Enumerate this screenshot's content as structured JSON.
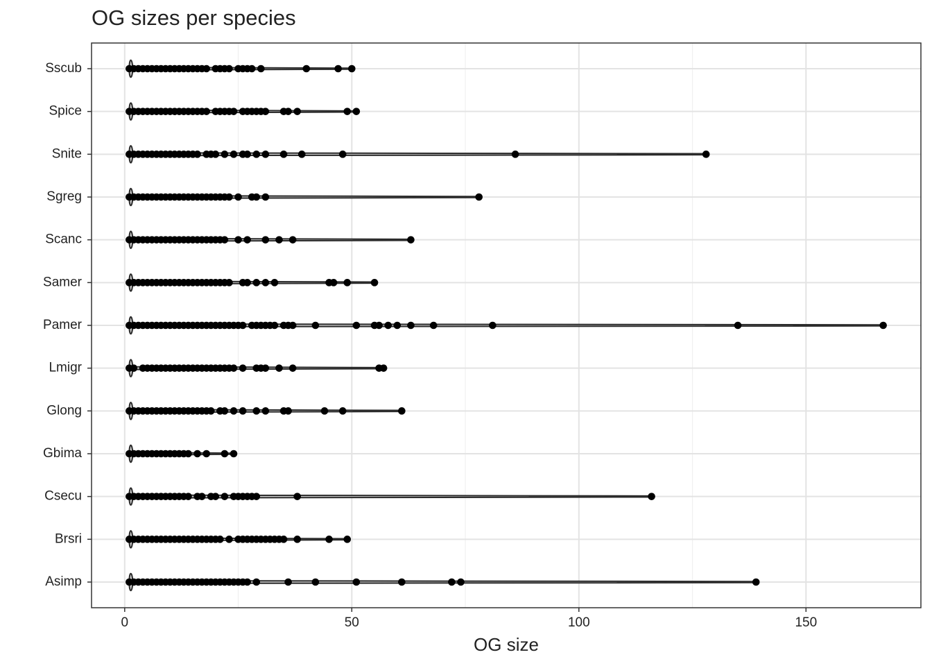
{
  "chart_data": {
    "type": "strip",
    "title": "OG sizes per species",
    "x_label": "OG size",
    "categories": [
      "Sscub",
      "Spice",
      "Snite",
      "Sgreg",
      "Scanc",
      "Samer",
      "Pamer",
      "Lmigr",
      "Glong",
      "Gbima",
      "Csecu",
      "Brsri",
      "Asimp"
    ],
    "values": [
      [
        1,
        2,
        3,
        4,
        5,
        6,
        7,
        8,
        9,
        10,
        11,
        12,
        13,
        14,
        15,
        16,
        17,
        18,
        20,
        21,
        22,
        23,
        25,
        26,
        27,
        28,
        30,
        40,
        47,
        50
      ],
      [
        1,
        2,
        3,
        4,
        5,
        6,
        7,
        8,
        9,
        10,
        11,
        12,
        13,
        14,
        15,
        16,
        17,
        18,
        20,
        21,
        22,
        23,
        24,
        26,
        27,
        28,
        29,
        30,
        31,
        35,
        36,
        38,
        49,
        51
      ],
      [
        1,
        2,
        3,
        4,
        5,
        6,
        7,
        8,
        9,
        10,
        11,
        12,
        13,
        14,
        15,
        16,
        18,
        19,
        20,
        22,
        24,
        26,
        27,
        29,
        31,
        35,
        39,
        48,
        86,
        128
      ],
      [
        1,
        2,
        3,
        4,
        5,
        6,
        7,
        8,
        9,
        10,
        11,
        12,
        13,
        14,
        15,
        16,
        17,
        18,
        19,
        20,
        21,
        22,
        23,
        25,
        28,
        29,
        31,
        78
      ],
      [
        1,
        2,
        3,
        4,
        5,
        6,
        7,
        8,
        9,
        10,
        11,
        12,
        13,
        14,
        15,
        16,
        17,
        18,
        19,
        20,
        21,
        22,
        25,
        27,
        31,
        34,
        37,
        63
      ],
      [
        1,
        2,
        3,
        4,
        5,
        6,
        7,
        8,
        9,
        10,
        11,
        12,
        13,
        14,
        15,
        16,
        17,
        18,
        19,
        20,
        21,
        22,
        23,
        26,
        27,
        29,
        31,
        33,
        45,
        46,
        49,
        55
      ],
      [
        1,
        2,
        3,
        4,
        5,
        6,
        7,
        8,
        9,
        10,
        11,
        12,
        13,
        14,
        15,
        16,
        17,
        18,
        19,
        20,
        21,
        22,
        23,
        24,
        25,
        26,
        28,
        29,
        30,
        31,
        32,
        33,
        35,
        36,
        37,
        42,
        51,
        55,
        56,
        58,
        60,
        63,
        68,
        81,
        135,
        167
      ],
      [
        1,
        2,
        4,
        5,
        6,
        7,
        8,
        9,
        10,
        11,
        12,
        13,
        14,
        15,
        16,
        17,
        18,
        19,
        20,
        21,
        22,
        23,
        24,
        26,
        29,
        30,
        31,
        34,
        37,
        56,
        57
      ],
      [
        1,
        2,
        3,
        4,
        5,
        6,
        7,
        8,
        9,
        10,
        11,
        12,
        13,
        14,
        15,
        16,
        17,
        18,
        19,
        21,
        22,
        24,
        26,
        29,
        31,
        35,
        36,
        44,
        48,
        61
      ],
      [
        1,
        2,
        3,
        4,
        5,
        6,
        7,
        8,
        9,
        10,
        11,
        12,
        13,
        14,
        16,
        18,
        22,
        24
      ],
      [
        1,
        2,
        3,
        4,
        5,
        6,
        7,
        8,
        9,
        10,
        11,
        12,
        13,
        14,
        16,
        17,
        19,
        20,
        22,
        24,
        25,
        26,
        27,
        28,
        29,
        38,
        116
      ],
      [
        1,
        2,
        3,
        4,
        5,
        6,
        7,
        8,
        9,
        10,
        11,
        12,
        13,
        14,
        15,
        16,
        17,
        18,
        19,
        20,
        21,
        23,
        25,
        26,
        27,
        28,
        29,
        30,
        31,
        32,
        33,
        34,
        35,
        38,
        45,
        49
      ],
      [
        1,
        2,
        3,
        4,
        5,
        6,
        7,
        8,
        9,
        10,
        11,
        12,
        13,
        14,
        15,
        16,
        17,
        18,
        19,
        20,
        21,
        22,
        23,
        24,
        25,
        26,
        27,
        29,
        36,
        42,
        51,
        61,
        72,
        74,
        139
      ]
    ],
    "color": "#000000",
    "xlim": [
      -7.3,
      175.3
    ],
    "xticks": [
      0,
      50,
      100,
      150
    ],
    "minor_xticks": [
      25,
      75,
      125
    ],
    "grid": true
  }
}
